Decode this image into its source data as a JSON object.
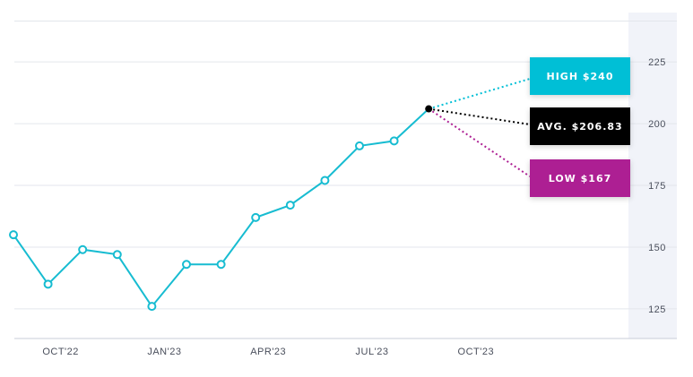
{
  "chart_data": {
    "type": "line",
    "x": [
      "Sep'22",
      "Oct'22",
      "Nov'22",
      "Dec'22",
      "Jan'23",
      "Feb'23",
      "Mar'23",
      "Apr'23",
      "May'23",
      "Jun'23",
      "Jul'23",
      "Aug'23",
      "Sep'23"
    ],
    "series": [
      {
        "values": [
          155,
          135,
          149,
          147,
          126,
          143,
          143,
          162,
          167,
          177,
          191,
          193,
          206
        ]
      }
    ],
    "x_tick_labels": [
      "OCT'22",
      "JAN'23",
      "APR'23",
      "JUL'23",
      "OCT'23"
    ],
    "y_ticks": [
      125,
      150,
      175,
      200,
      225
    ],
    "ylim": [
      113,
      245
    ],
    "y_axis_side": "right",
    "grid": true,
    "title": "",
    "xlabel": "",
    "ylabel": "",
    "colors": {
      "line": "#17bcd1",
      "high": "#00bfd6",
      "avg": "#000000",
      "low": "#ad1f93"
    },
    "annotations": {
      "high": {
        "label": "HIGH $240",
        "value": 240
      },
      "avg": {
        "label": "AVG. $206.83",
        "value": 206.83
      },
      "low": {
        "label": "LOW $167",
        "value": 167
      }
    }
  }
}
